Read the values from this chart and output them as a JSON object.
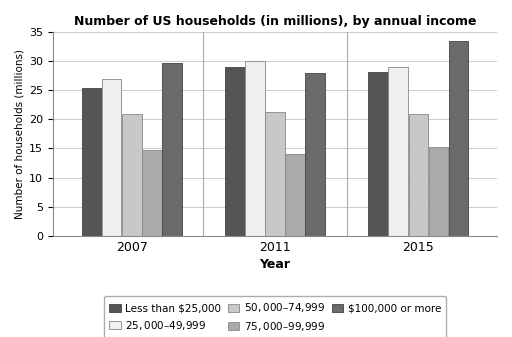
{
  "title": "Number of US households (in millions), by annual income",
  "xlabel": "Year",
  "ylabel": "Number of households (millions)",
  "years": [
    "2007",
    "2011",
    "2015"
  ],
  "categories": [
    "Less than $25,000",
    "$25,000–$49,999",
    "$50,000–$74,999",
    "$75,000–$99,999",
    "$100,000 or more"
  ],
  "values": [
    [
      25.3,
      27.0,
      21.0,
      14.8,
      29.7
    ],
    [
      29.0,
      30.0,
      21.2,
      14.1,
      28.0
    ],
    [
      28.1,
      29.0,
      21.0,
      15.3,
      33.5
    ]
  ],
  "colors": [
    "#555555",
    "#f0f0f0",
    "#c8c8c8",
    "#aaaaaa",
    "#6a6a6a"
  ],
  "bar_edge_colors": [
    "#444444",
    "#888888",
    "#888888",
    "#888888",
    "#444444"
  ],
  "ylim": [
    0,
    35
  ],
  "yticks": [
    0,
    5,
    10,
    15,
    20,
    25,
    30,
    35
  ],
  "bar_width": 0.14,
  "legend_ncol": 3,
  "background_color": "#ffffff",
  "grid_color": "#cccccc"
}
